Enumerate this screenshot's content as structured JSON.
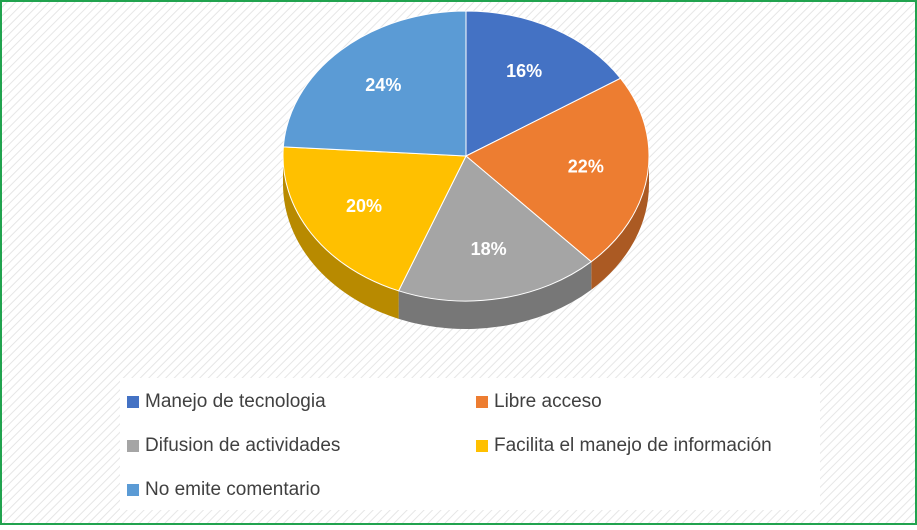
{
  "chart_data": {
    "type": "pie",
    "categories": [
      "Manejo de tecnologia",
      "Libre acceso",
      "Difusion de actividades",
      "Facilita el manejo de información",
      "No emite comentario"
    ],
    "values": [
      16,
      22,
      18,
      20,
      24
    ],
    "value_labels": [
      "16%",
      "22%",
      "18%",
      "20%",
      "24%"
    ],
    "colors": [
      "#4472c4",
      "#ed7d31",
      "#a5a5a5",
      "#ffc000",
      "#5b9bd5"
    ],
    "legend": "bottom"
  }
}
